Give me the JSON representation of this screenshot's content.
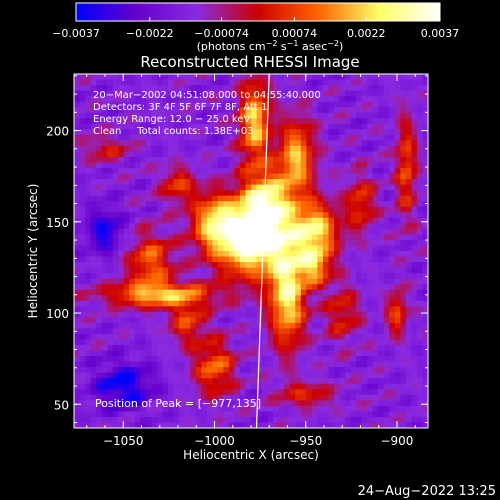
{
  "chart_data": {
    "type": "heatmap",
    "title": "Reconstructed RHESSI Image",
    "xlabel": "Heliocentric X (arcsec)",
    "ylabel": "Heliocentric Y (arcsec)",
    "xlim": [
      -1077,
      -883
    ],
    "ylim": [
      37,
      231
    ],
    "x_ticks": [
      -1050,
      -1000,
      -950,
      -900
    ],
    "y_ticks": [
      50,
      100,
      150,
      200
    ],
    "x_tick_labels": [
      "−1050",
      "−1000",
      "−950",
      "−900"
    ],
    "y_tick_labels": [
      "50",
      "100",
      "150",
      "200"
    ],
    "colorbar": {
      "range": [
        -0.0037,
        0.0037
      ],
      "ticks": [
        -0.0037,
        -0.0022,
        -0.00074,
        0.00074,
        0.0022,
        0.0037
      ],
      "tick_labels": [
        "−0.0037",
        "−0.0022",
        "−0.00074",
        "0.00074",
        "0.0022",
        "0.0037"
      ],
      "unit_label": "(photons cm",
      "unit_parts": [
        "(photons cm",
        "−2",
        " s",
        "−1",
        " asec",
        "−2",
        ")"
      ],
      "colors": [
        "#0000ff",
        "#6600cc",
        "#8a2be2",
        "#cc0000",
        "#ff6600",
        "#ffff66",
        "#ffffff"
      ]
    },
    "info": [
      "20−Mar−2002 04:51:08.000 to 04:55:40.000",
      "Detectors: 3F 4F 5F 6F 7F 8F, Att 1",
      "Energy Range: 12.0 − 25.0 keV",
      "Clean     Total counts: 1.38E+03"
    ],
    "peak_label": "Position of Peak = [−977,135]",
    "peak": [
      -977,
      135
    ],
    "limb_points": [
      [
        -970,
        231
      ],
      [
        -977,
        37
      ]
    ],
    "sources": [
      {
        "x": -980,
        "y": 140,
        "sx": 14,
        "sy": 14,
        "amp": 1.0
      },
      {
        "x": -972,
        "y": 160,
        "sx": 9,
        "sy": 13,
        "amp": 0.75
      },
      {
        "x": -1000,
        "y": 150,
        "sx": 9,
        "sy": 11,
        "amp": 0.6
      },
      {
        "x": -960,
        "y": 110,
        "sx": 7,
        "sy": 20,
        "amp": 0.8
      },
      {
        "x": -945,
        "y": 145,
        "sx": 9,
        "sy": 11,
        "amp": 0.75
      },
      {
        "x": -945,
        "y": 125,
        "sx": 6,
        "sy": 7,
        "amp": 0.55
      },
      {
        "x": -955,
        "y": 185,
        "sx": 7,
        "sy": 15,
        "amp": 0.65
      },
      {
        "x": -978,
        "y": 205,
        "sx": 6,
        "sy": 16,
        "amp": 0.7
      },
      {
        "x": -1030,
        "y": 110,
        "sx": 22,
        "sy": 5,
        "amp": 0.6
      },
      {
        "x": -1035,
        "y": 128,
        "sx": 9,
        "sy": 11,
        "amp": 0.5
      },
      {
        "x": -1015,
        "y": 95,
        "sx": 7,
        "sy": 9,
        "amp": 0.4
      },
      {
        "x": -1000,
        "y": 70,
        "sx": 8,
        "sy": 11,
        "amp": 0.5
      },
      {
        "x": -1020,
        "y": 170,
        "sx": 7,
        "sy": 7,
        "amp": 0.4
      },
      {
        "x": -930,
        "y": 100,
        "sx": 7,
        "sy": 11,
        "amp": 0.35
      },
      {
        "x": -920,
        "y": 160,
        "sx": 6,
        "sy": 11,
        "amp": 0.4
      },
      {
        "x": -895,
        "y": 180,
        "sx": 4,
        "sy": 20,
        "amp": 0.45
      },
      {
        "x": -900,
        "y": 100,
        "sx": 4,
        "sy": 9,
        "amp": 0.45
      },
      {
        "x": -950,
        "y": 55,
        "sx": 11,
        "sy": 5,
        "amp": 0.35
      },
      {
        "x": -1060,
        "y": 190,
        "sx": 9,
        "sy": 5,
        "amp": 0.3
      }
    ],
    "negative_sources": [
      {
        "x": -1050,
        "y": 60,
        "sx": 11,
        "sy": 9,
        "amp": 0.4
      },
      {
        "x": -1060,
        "y": 145,
        "sx": 7,
        "sy": 9,
        "amp": 0.35
      }
    ]
  },
  "timestamp": "24−Aug−2022 13:25"
}
